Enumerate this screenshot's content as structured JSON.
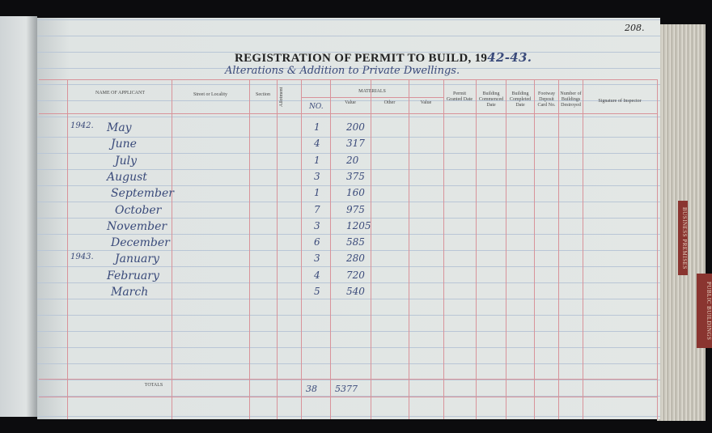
{
  "page_number": "208.",
  "title": "REGISTRATION OF PERMIT TO BUILD, 19",
  "title_year": "42-43.",
  "subtitle": "Alterations & Addition to Private Dwellings.",
  "headers": {
    "name": "NAME OF APPLICANT",
    "street": "Street or Locality",
    "section": "Section",
    "allotment": "Allotment",
    "materials": "MATERIALS",
    "no": "NO.",
    "value": "Value",
    "other": "Other",
    "value2": "Value",
    "permit": "Permit Granted Date",
    "commenced": "Building Commenced Date",
    "completed": "Building Completed Date",
    "footway": "Footway Deposit Card No.",
    "destroyed": "Number of Buildings Destroyed",
    "signature": "Signature of Inspector"
  },
  "rows": [
    {
      "year": "1942.",
      "month": "May",
      "no": "1",
      "value": "200"
    },
    {
      "year": "",
      "month": "June",
      "no": "4",
      "value": "317"
    },
    {
      "year": "",
      "month": "July",
      "no": "1",
      "value": "20"
    },
    {
      "year": "",
      "month": "August",
      "no": "3",
      "value": "375"
    },
    {
      "year": "",
      "month": "September",
      "no": "1",
      "value": "160"
    },
    {
      "year": "",
      "month": "October",
      "no": "7",
      "value": "975"
    },
    {
      "year": "",
      "month": "November",
      "no": "3",
      "value": "1205"
    },
    {
      "year": "",
      "month": "December",
      "no": "6",
      "value": "585"
    },
    {
      "year": "1943.",
      "month": "January",
      "no": "3",
      "value": "280"
    },
    {
      "year": "",
      "month": "February",
      "no": "4",
      "value": "720"
    },
    {
      "year": "",
      "month": "March",
      "no": "5",
      "value": "540"
    }
  ],
  "totals": {
    "label": "TOTALS",
    "no": "38",
    "value": "5377"
  },
  "tabs": [
    "BUSINESS PREMISES",
    "PUBLIC BUILDINGS"
  ]
}
